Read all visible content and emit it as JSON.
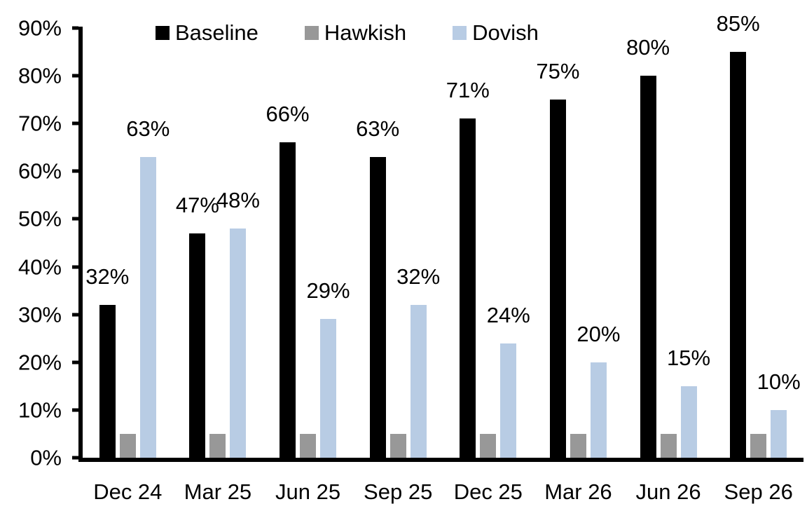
{
  "colors": {
    "background": "#ffffff",
    "axis": "#000000",
    "text": "#000000",
    "baseline": "#000000",
    "hawkish": "#989898",
    "dovish": "#b8cce4"
  },
  "chart_data": {
    "type": "bar",
    "title": "",
    "categories": [
      "Dec 24",
      "Mar 25",
      "Jun 25",
      "Sep 25",
      "Dec 25",
      "Mar 26",
      "Jun 26",
      "Sep 26"
    ],
    "series": [
      {
        "name": "Baseline",
        "color": "#000000",
        "values": [
          32,
          47,
          66,
          63,
          71,
          75,
          80,
          85
        ],
        "data_labels": [
          "32%",
          "47%",
          "66%",
          "63%",
          "71%",
          "75%",
          "80%",
          "85%"
        ]
      },
      {
        "name": "Hawkish",
        "color": "#989898",
        "values": [
          5,
          5,
          5,
          5,
          5,
          5,
          5,
          5
        ],
        "data_labels": [
          null,
          null,
          null,
          null,
          null,
          null,
          null,
          null
        ]
      },
      {
        "name": "Dovish",
        "color": "#b8cce4",
        "values": [
          63,
          48,
          29,
          32,
          24,
          20,
          15,
          10
        ],
        "data_labels": [
          "63%",
          "48%",
          "29%",
          "32%",
          "24%",
          "20%",
          "15%",
          "10%"
        ]
      }
    ],
    "xlabel": "",
    "ylabel": "",
    "ylim": [
      0,
      90
    ],
    "ytick_labels": [
      "0%",
      "10%",
      "20%",
      "30%",
      "40%",
      "50%",
      "60%",
      "70%",
      "80%",
      "90%"
    ],
    "grid": false,
    "legend_position": "top",
    "data_label_position": "outside-end"
  }
}
